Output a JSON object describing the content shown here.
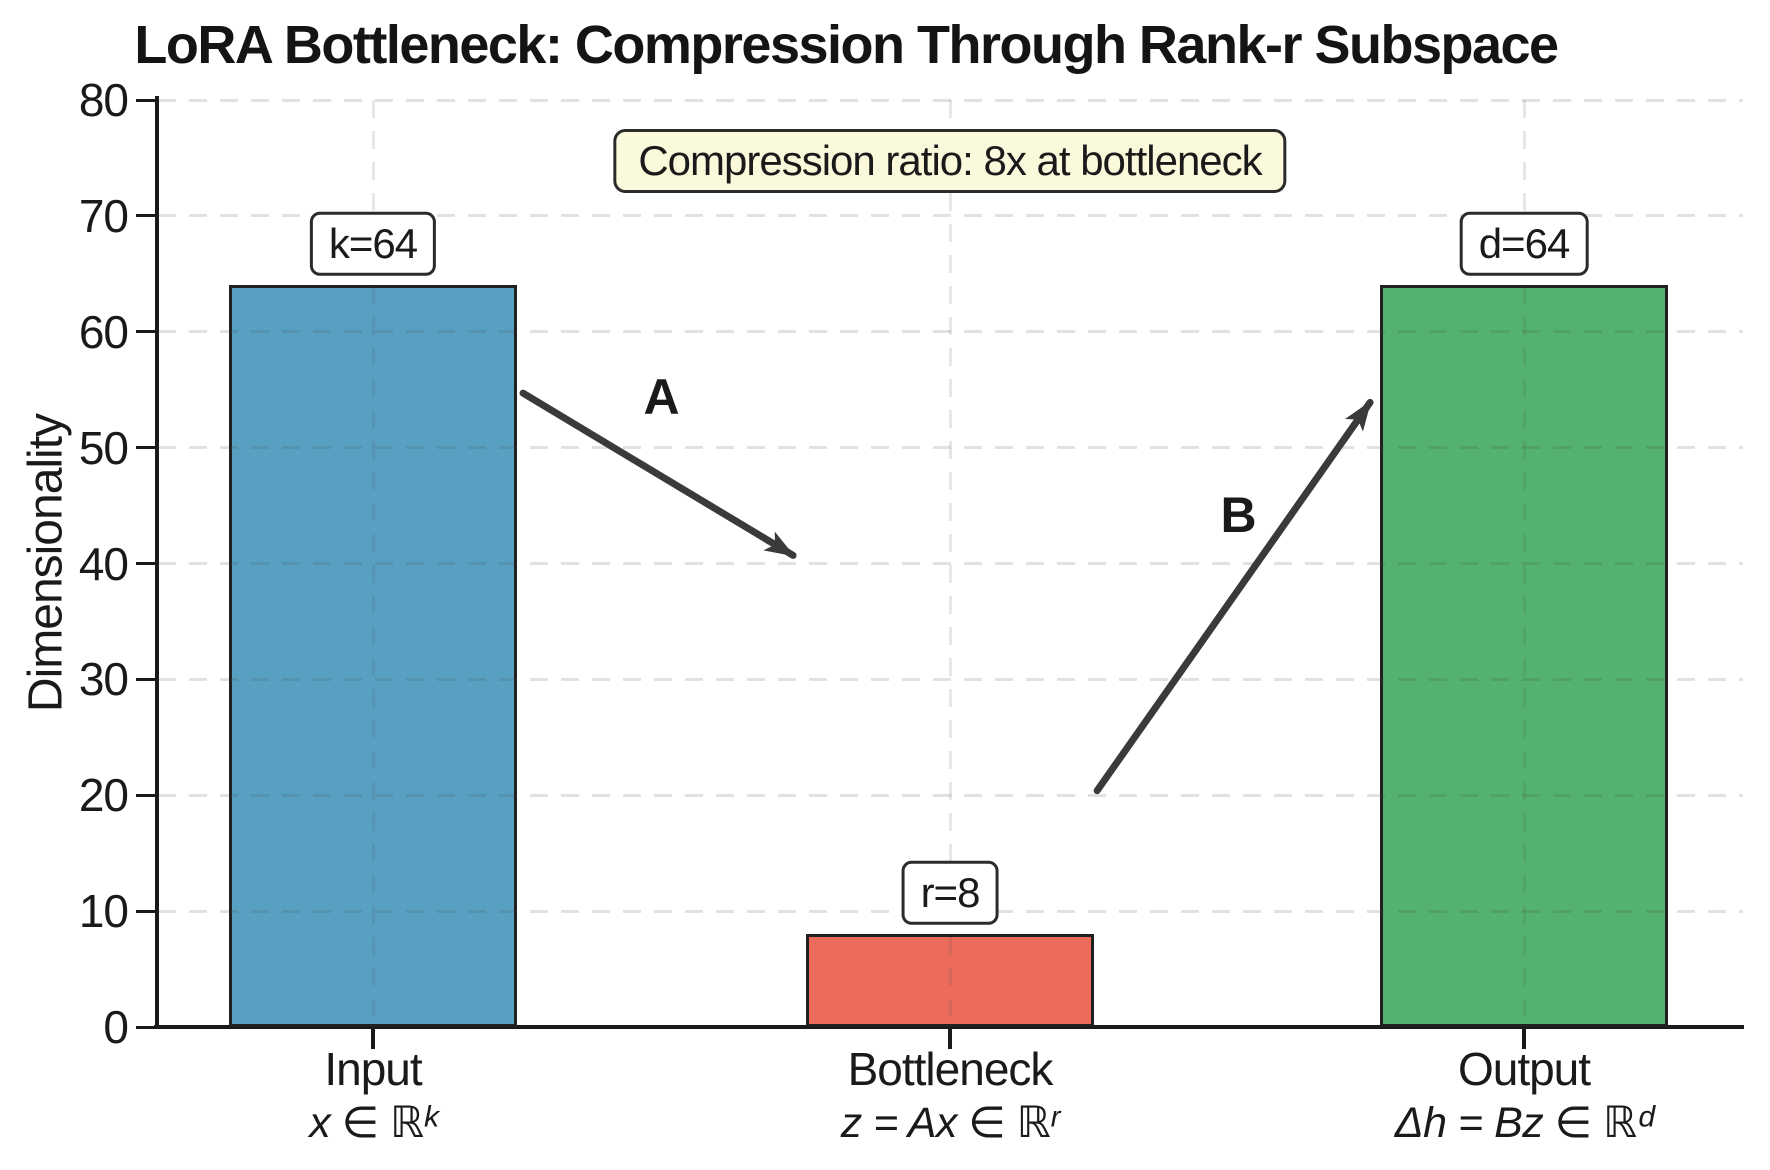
{
  "background": "#ffffff",
  "chart_data": {
    "type": "bar",
    "title": "LoRA Bottleneck: Compression Through Rank-r Subspace",
    "ylabel": "Dimensionality",
    "xlabel": "",
    "ylim": [
      0,
      80
    ],
    "yticks": [
      "0",
      "10",
      "20",
      "30",
      "40",
      "50",
      "60",
      "70",
      "80"
    ],
    "grid": "dashed horizontal and vertical gridlines",
    "legend": "none",
    "categories": [
      "Input",
      "Bottleneck",
      "Output"
    ],
    "category_formulas": [
      "x ∈ ℝᵏ",
      "z = Ax ∈ ℝʳ",
      "Δh = Bz ∈ ℝᵈ"
    ],
    "values": [
      64,
      8,
      64
    ],
    "bar_labels": [
      "k=64",
      "r=8",
      "d=64"
    ],
    "bar_colors": [
      "#57A0C2",
      "#EC6B5B",
      "#53B26D"
    ],
    "bar_edge_color": "#202020",
    "annotation": "Compression ratio: 8x at bottleneck",
    "annotation_bg": "#FAF9DC",
    "arrow_color": "#3a3a3a",
    "arrows": [
      {
        "label": "A",
        "from": [
          0.26,
          54.7
        ],
        "to": [
          0.728,
          40.7
        ],
        "label_at": [
          0.5,
          54.4
        ]
      },
      {
        "label": "B",
        "from": [
          1.255,
          20.4
        ],
        "to": [
          1.728,
          53.9
        ],
        "label_at": [
          1.5,
          44.2
        ]
      }
    ]
  }
}
